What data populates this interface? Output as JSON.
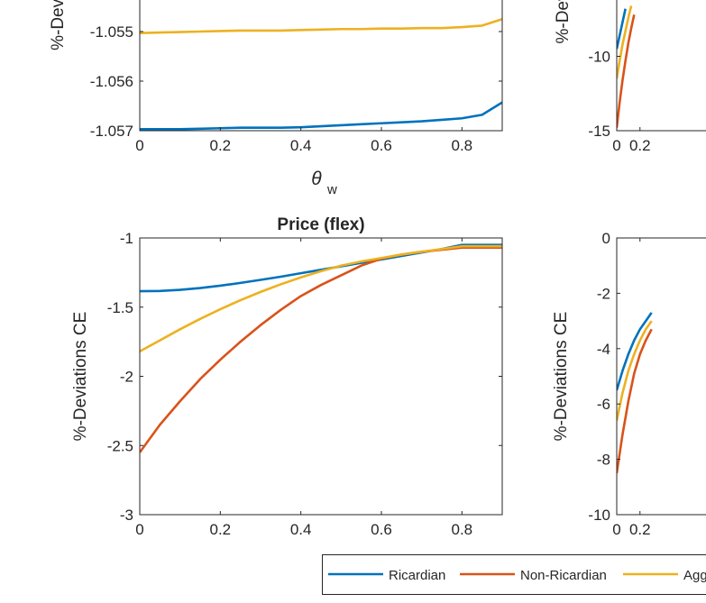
{
  "colors": {
    "ricardian": "#0072BD",
    "non_ricardian": "#D95319",
    "aggregate": "#EDB120",
    "axis": "#262626"
  },
  "legend": {
    "entries": [
      "Ricardian",
      "Non-Ricardian",
      "Agg"
    ]
  },
  "chart_data": [
    {
      "id": "top-left",
      "type": "line",
      "title": "",
      "xlabel_symbol": "θ",
      "xlabel_subscript": "w",
      "ylabel": "%-Devia",
      "xlim": [
        0,
        0.9
      ],
      "ylim": [
        -1.057,
        -1.054
      ],
      "xticks": [
        0,
        0.2,
        0.4,
        0.6,
        0.8
      ],
      "xtick_labels": [
        "0",
        "0.2",
        "0.4",
        "0.6",
        "0.8"
      ],
      "yticks": [
        -1.057,
        -1.056,
        -1.055
      ],
      "ytick_labels": [
        "-1.057",
        "-1.056",
        "-1.055"
      ],
      "series": [
        {
          "name": "Ricardian",
          "color_key": "ricardian",
          "x": [
            0,
            0.05,
            0.1,
            0.15,
            0.2,
            0.25,
            0.3,
            0.35,
            0.4,
            0.45,
            0.5,
            0.55,
            0.6,
            0.65,
            0.7,
            0.75,
            0.8,
            0.85,
            0.9
          ],
          "y": [
            -1.05697,
            -1.05697,
            -1.05697,
            -1.05696,
            -1.05695,
            -1.05694,
            -1.05694,
            -1.05694,
            -1.05693,
            -1.05691,
            -1.05689,
            -1.05687,
            -1.05685,
            -1.05683,
            -1.05681,
            -1.05678,
            -1.05675,
            -1.05668,
            -1.05643
          ]
        },
        {
          "name": "Non-Ricardian",
          "color_key": "non_ricardian",
          "x": [],
          "y": []
        },
        {
          "name": "Agg",
          "color_key": "aggregate",
          "x": [
            0,
            0.05,
            0.1,
            0.15,
            0.2,
            0.25,
            0.3,
            0.35,
            0.4,
            0.45,
            0.5,
            0.55,
            0.6,
            0.65,
            0.7,
            0.75,
            0.8,
            0.85,
            0.9
          ],
          "y": [
            -1.05503,
            -1.05502,
            -1.05501,
            -1.055,
            -1.05499,
            -1.05498,
            -1.05498,
            -1.05498,
            -1.05497,
            -1.05496,
            -1.05495,
            -1.05495,
            -1.05494,
            -1.05494,
            -1.05493,
            -1.05493,
            -1.05491,
            -1.05488,
            -1.05475
          ]
        }
      ]
    },
    {
      "id": "top-right",
      "type": "line",
      "title": "",
      "ylabel": "%-Dev",
      "xlim": [
        0,
        0.9
      ],
      "ylim": [
        -15,
        -5
      ],
      "xticks": [
        0,
        0.2
      ],
      "xtick_labels": [
        "0",
        "0.2"
      ],
      "yticks": [
        -15,
        -10
      ],
      "ytick_labels": [
        "-15",
        "-10"
      ],
      "series": [
        {
          "name": "Ricardian",
          "color_key": "ricardian",
          "x": [
            0,
            0.025,
            0.05,
            0.075
          ],
          "y": [
            -9.5,
            -8.6,
            -7.7,
            -6.8
          ]
        },
        {
          "name": "Non-Ricardian",
          "color_key": "non_ricardian",
          "x": [
            0,
            0.025,
            0.05,
            0.075,
            0.1,
            0.125,
            0.15
          ],
          "y": [
            -14.8,
            -13.1,
            -11.6,
            -10.3,
            -9.1,
            -8.1,
            -7.2
          ]
        },
        {
          "name": "Agg",
          "color_key": "aggregate",
          "x": [
            0,
            0.025,
            0.05,
            0.075,
            0.1,
            0.125
          ],
          "y": [
            -11.5,
            -10.3,
            -9.2,
            -8.3,
            -7.4,
            -6.6
          ]
        }
      ]
    },
    {
      "id": "bottom-left",
      "type": "line",
      "title": "Price (flex)",
      "ylabel": "%-Deviations CE",
      "xlim": [
        0,
        0.9
      ],
      "ylim": [
        -3,
        -1
      ],
      "xticks": [
        0,
        0.2,
        0.4,
        0.6,
        0.8
      ],
      "xtick_labels": [
        "0",
        "0.2",
        "0.4",
        "0.6",
        "0.8"
      ],
      "yticks": [
        -3,
        -2.5,
        -2,
        -1.5,
        -1
      ],
      "ytick_labels": [
        "-3",
        "-2.5",
        "-2",
        "-1.5",
        "-1"
      ],
      "series": [
        {
          "name": "Ricardian",
          "color_key": "ricardian",
          "x": [
            0,
            0.05,
            0.1,
            0.15,
            0.2,
            0.25,
            0.3,
            0.35,
            0.4,
            0.45,
            0.5,
            0.55,
            0.6,
            0.65,
            0.7,
            0.75,
            0.8,
            0.85,
            0.9
          ],
          "y": [
            -1.385,
            -1.383,
            -1.375,
            -1.362,
            -1.345,
            -1.325,
            -1.303,
            -1.28,
            -1.255,
            -1.23,
            -1.205,
            -1.18,
            -1.155,
            -1.13,
            -1.105,
            -1.08,
            -1.05,
            -1.05,
            -1.05
          ]
        },
        {
          "name": "Non-Ricardian",
          "color_key": "non_ricardian",
          "x": [
            0,
            0.05,
            0.1,
            0.15,
            0.2,
            0.25,
            0.3,
            0.35,
            0.4,
            0.45,
            0.5,
            0.55,
            0.6,
            0.65,
            0.7,
            0.75,
            0.8,
            0.85,
            0.9
          ],
          "y": [
            -2.55,
            -2.35,
            -2.18,
            -2.02,
            -1.88,
            -1.75,
            -1.63,
            -1.52,
            -1.42,
            -1.34,
            -1.27,
            -1.2,
            -1.15,
            -1.12,
            -1.1,
            -1.085,
            -1.07,
            -1.07,
            -1.07
          ]
        },
        {
          "name": "Agg",
          "color_key": "aggregate",
          "x": [
            0,
            0.05,
            0.1,
            0.15,
            0.2,
            0.25,
            0.3,
            0.35,
            0.4,
            0.45,
            0.5,
            0.55,
            0.6,
            0.65,
            0.7,
            0.75,
            0.8,
            0.85,
            0.9
          ],
          "y": [
            -1.82,
            -1.74,
            -1.66,
            -1.585,
            -1.515,
            -1.45,
            -1.39,
            -1.335,
            -1.285,
            -1.24,
            -1.2,
            -1.17,
            -1.145,
            -1.12,
            -1.1,
            -1.08,
            -1.06,
            -1.06,
            -1.06
          ]
        }
      ]
    },
    {
      "id": "bottom-right",
      "type": "line",
      "title": "",
      "ylabel": "%-Deviations CE",
      "xlim": [
        0,
        0.9
      ],
      "ylim": [
        -10,
        0
      ],
      "xticks": [
        0,
        0.2
      ],
      "xtick_labels": [
        "0",
        "0.2"
      ],
      "yticks": [
        -10,
        -8,
        -6,
        -4,
        -2,
        0
      ],
      "ytick_labels": [
        "-10",
        "-8",
        "-6",
        "-4",
        "-2",
        "0"
      ],
      "series": [
        {
          "name": "Ricardian",
          "color_key": "ricardian",
          "x": [
            0,
            0.05,
            0.1,
            0.15,
            0.2,
            0.25,
            0.3
          ],
          "y": [
            -5.5,
            -4.8,
            -4.2,
            -3.7,
            -3.3,
            -3.0,
            -2.7
          ]
        },
        {
          "name": "Non-Ricardian",
          "color_key": "non_ricardian",
          "x": [
            0,
            0.05,
            0.1,
            0.15,
            0.2,
            0.25,
            0.3
          ],
          "y": [
            -8.5,
            -7.1,
            -5.9,
            -4.9,
            -4.2,
            -3.7,
            -3.3
          ]
        },
        {
          "name": "Agg",
          "color_key": "aggregate",
          "x": [
            0,
            0.05,
            0.1,
            0.15,
            0.2,
            0.25,
            0.3
          ],
          "y": [
            -6.6,
            -5.6,
            -4.8,
            -4.2,
            -3.7,
            -3.3,
            -3.0
          ]
        }
      ]
    }
  ]
}
